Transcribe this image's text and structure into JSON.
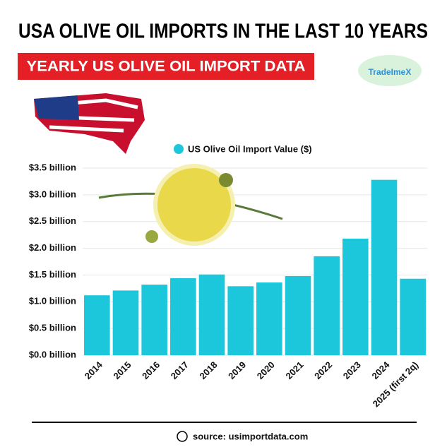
{
  "chart_data": {
    "type": "bar",
    "title": "USA OLIVE OIL IMPORTS IN THE LAST 10 YEARS",
    "subtitle": "YEARLY US OLIVE OIL IMPORT DATA",
    "brand": "TradeImeX",
    "source": "source: usimportdata.com",
    "categories": [
      "2014",
      "2015",
      "2016",
      "2017",
      "2018",
      "2019",
      "2020",
      "2021",
      "2022",
      "2023",
      "2024",
      "2025 (first 2q)"
    ],
    "series": [
      {
        "name": "US Olive Oil Import Value ($)",
        "color": "#1cc7dc",
        "values": [
          1.12,
          1.21,
          1.32,
          1.44,
          1.51,
          1.29,
          1.36,
          1.48,
          1.85,
          2.18,
          3.28,
          1.43
        ]
      }
    ],
    "ylim": [
      0,
      3.5
    ],
    "yticks": [
      {
        "value": 0,
        "label": "$0.0 billion"
      },
      {
        "value": 0.5,
        "label": "$0.5 billion"
      },
      {
        "value": 1,
        "label": "$1.0 billion"
      },
      {
        "value": 1.5,
        "label": "$1.5 billion"
      },
      {
        "value": 2,
        "label": "$2.0 billion"
      },
      {
        "value": 2.5,
        "label": "$2.5 billion"
      },
      {
        "value": 3,
        "label": "$3.0 billion"
      },
      {
        "value": 3.5,
        "label": "$3.5 billion"
      }
    ],
    "grid": true
  }
}
